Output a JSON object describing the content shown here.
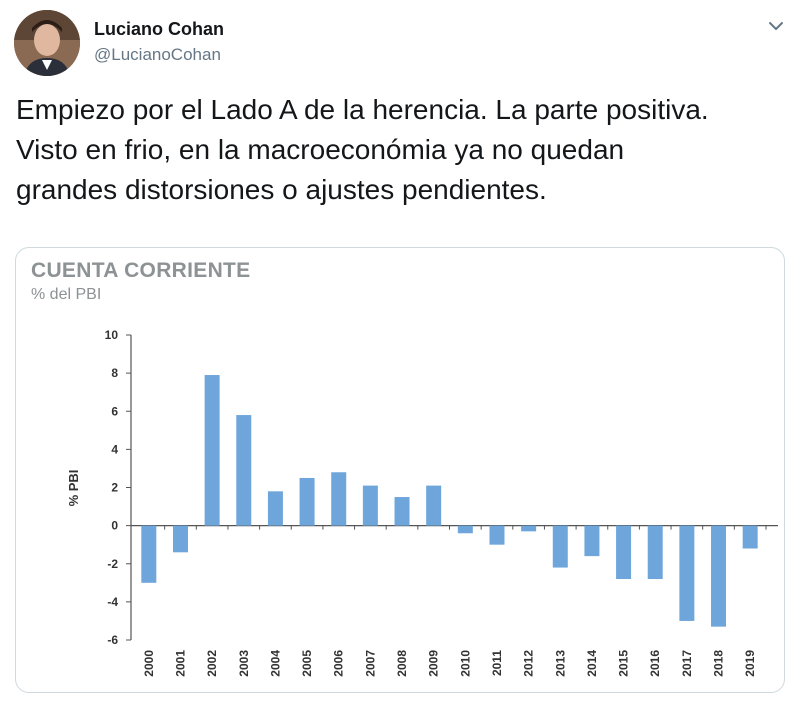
{
  "tweet": {
    "display_name": "Luciano Cohan",
    "handle": "@LucianoCohan",
    "text": "Empiezo por el Lado A de la herencia. La parte positiva.\nVisto en frio, en la macroeconómia ya no quedan\ngrandes distorsiones o ajustes pendientes."
  },
  "icons": {
    "avatar": "avatar-photo",
    "caret": "chevron-down-icon"
  },
  "colors": {
    "bar": "#6ea6dc",
    "axis": "#555555",
    "chart_title": "#8d9294"
  },
  "chart_data": {
    "type": "bar",
    "title": "CUENTA CORRIENTE",
    "subtitle": "% del PBI",
    "ylabel": "% PBI",
    "xlabel": "",
    "ylim": [
      -6,
      10
    ],
    "yticks": [
      10,
      8,
      6,
      4,
      2,
      0,
      -2,
      -4,
      -6
    ],
    "grid": false,
    "categories": [
      "2000",
      "2001",
      "2002",
      "2003",
      "2004",
      "2005",
      "2006",
      "2007",
      "2008",
      "2009",
      "2010",
      "2011",
      "2012",
      "2013",
      "2014",
      "2015",
      "2016",
      "2017",
      "2018",
      "2019"
    ],
    "values": [
      -3.0,
      -1.4,
      7.9,
      5.8,
      1.8,
      2.5,
      2.8,
      2.1,
      1.5,
      2.1,
      -0.4,
      -1.0,
      -0.3,
      -2.2,
      -1.6,
      -2.8,
      -2.8,
      -5.0,
      -5.3,
      -1.2
    ]
  }
}
